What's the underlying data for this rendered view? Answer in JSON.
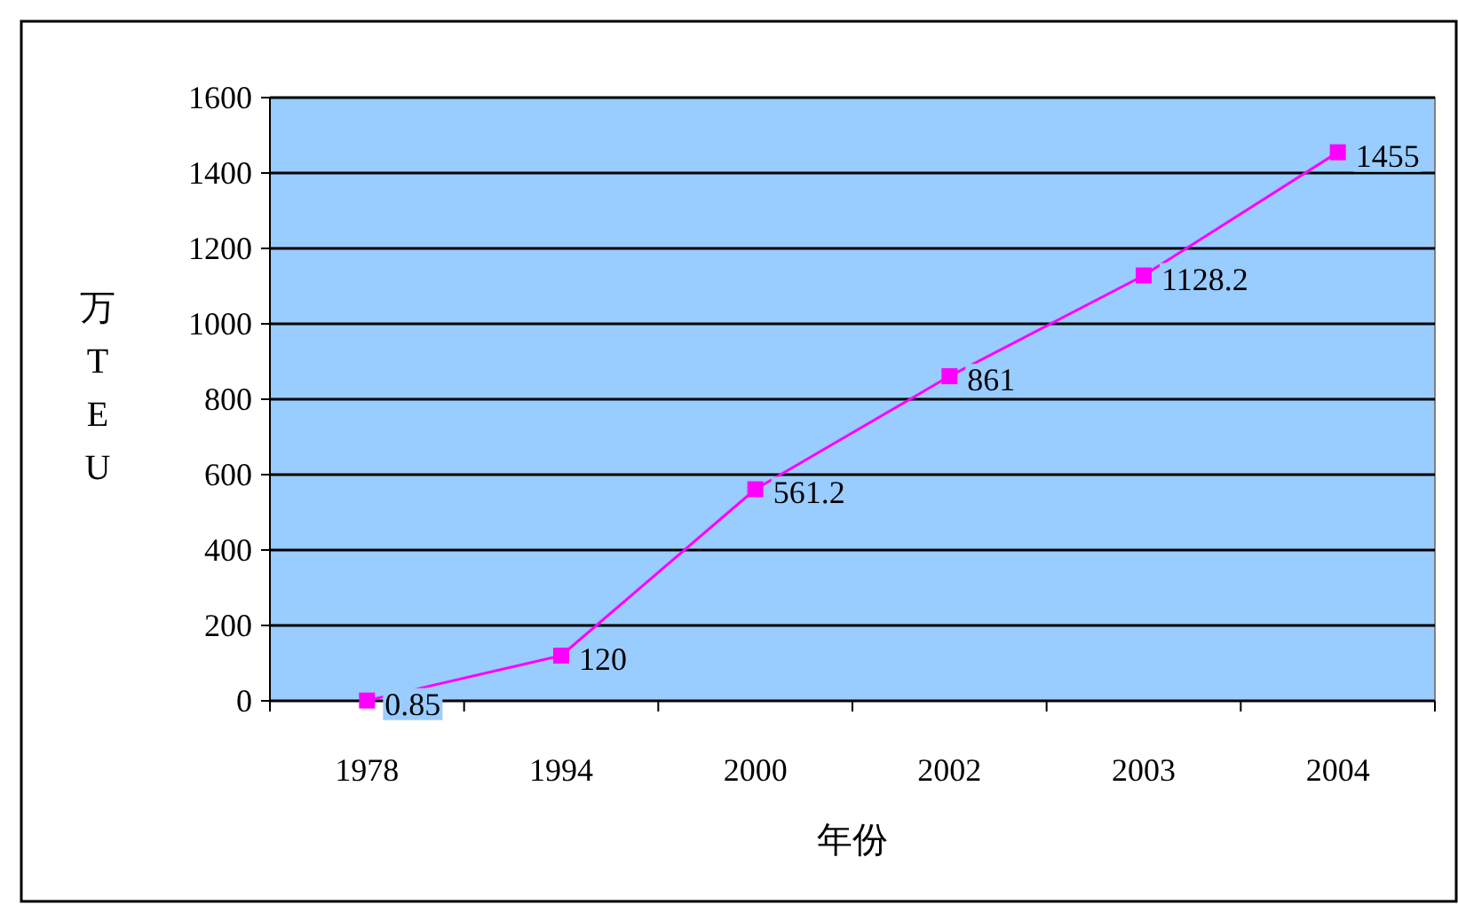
{
  "chart_data": {
    "type": "line",
    "xlabel": "年份",
    "ylabel": "万TEU",
    "categories": [
      "1978",
      "1994",
      "2000",
      "2002",
      "2003",
      "2004"
    ],
    "series": [
      {
        "color": "#ff00ff",
        "values": [
          0.85,
          120,
          561.2,
          861,
          1128.2,
          1455
        ]
      }
    ],
    "ylim": [
      0,
      1600
    ],
    "yticks": [
      0,
      200,
      400,
      600,
      800,
      1000,
      1200,
      1400,
      1600
    ],
    "grid": "y",
    "marker": "square",
    "line_style": "solid",
    "data_labels": true
  }
}
